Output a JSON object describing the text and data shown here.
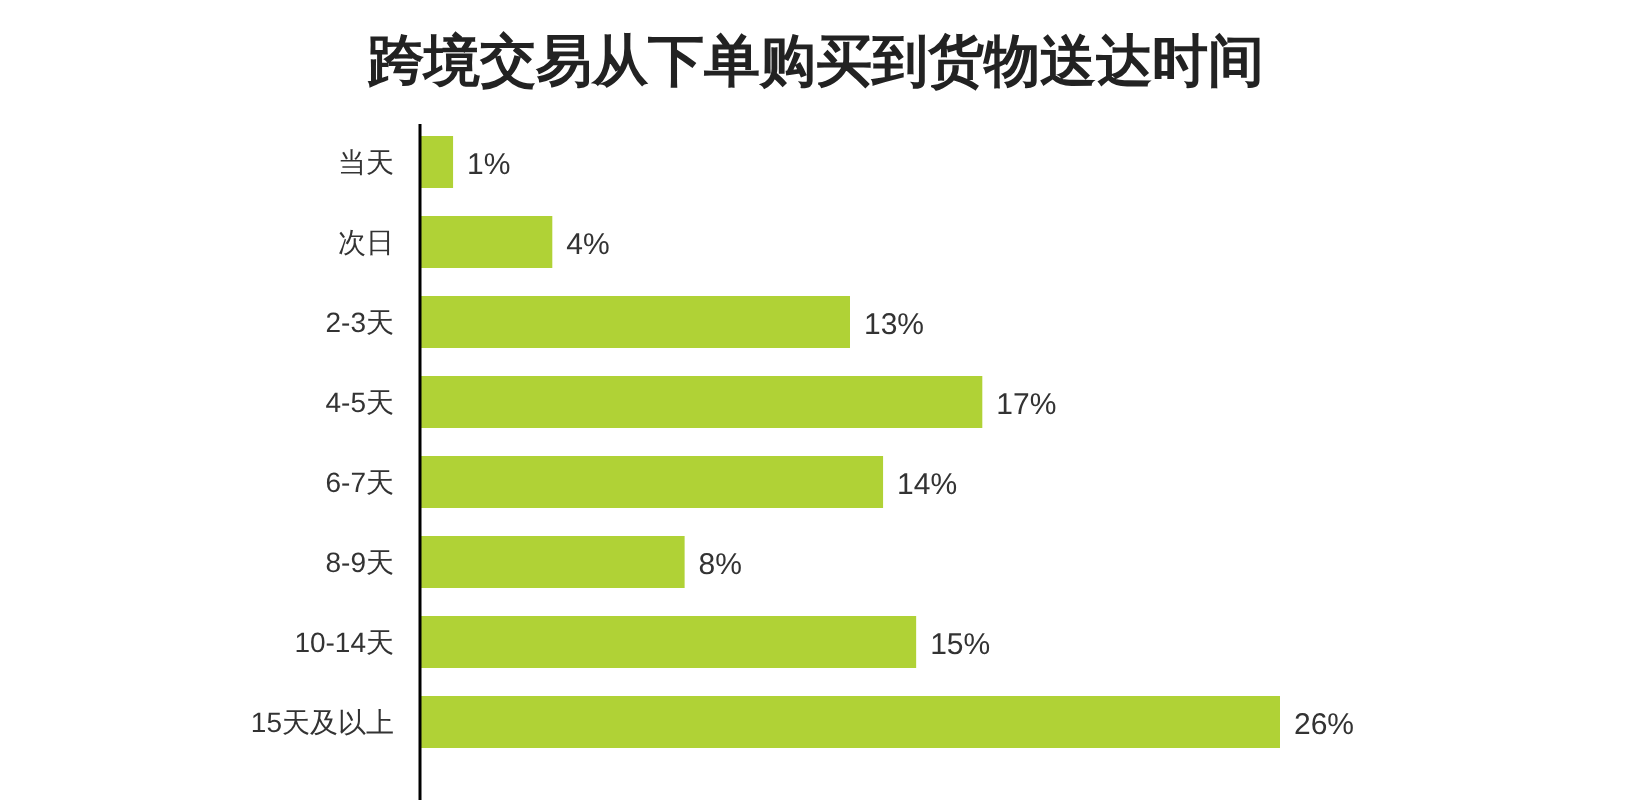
{
  "chart_data": {
    "type": "bar",
    "orientation": "horizontal",
    "title": "跨境交易从下单购买到货物送达时间",
    "categories": [
      "当天",
      "次日",
      "2-3天",
      "4-5天",
      "6-7天",
      "8-9天",
      "10-14天",
      "15天及以上"
    ],
    "values": [
      1,
      4,
      13,
      17,
      14,
      8,
      15,
      26
    ],
    "value_labels": [
      "1%",
      "4%",
      "13%",
      "17%",
      "14%",
      "8%",
      "15%",
      "26%"
    ],
    "color": "#b0d236"
  }
}
